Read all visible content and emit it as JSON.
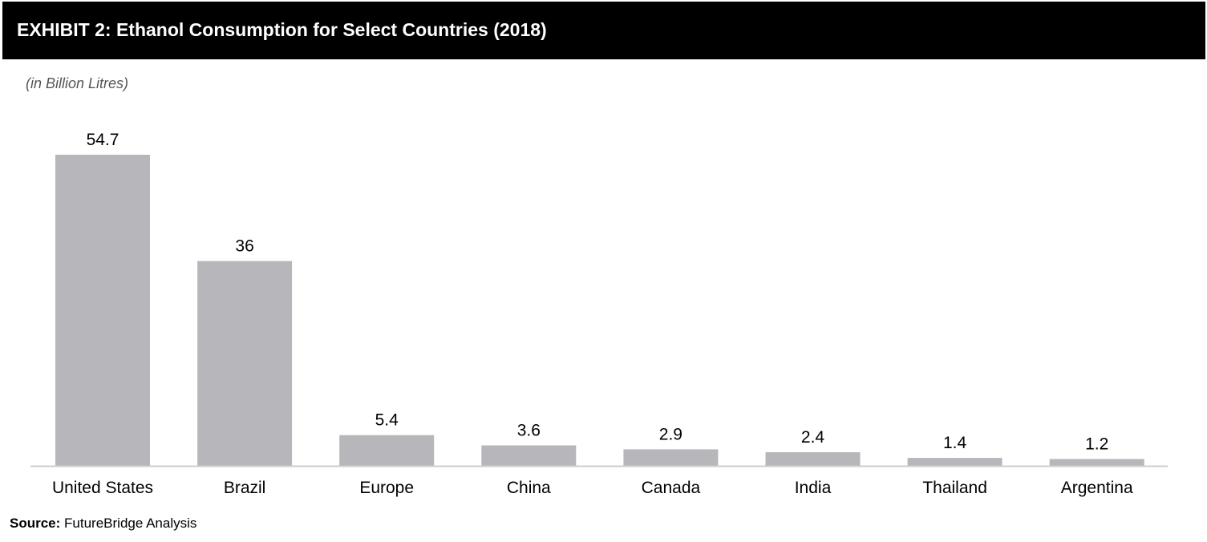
{
  "header": {
    "title": "EXHIBIT 2: Ethanol Consumption for Select Countries (2018)"
  },
  "units_note": "(in Billion Litres)",
  "source": {
    "label": "Source:",
    "text": "FutureBridge Analysis"
  },
  "colors": {
    "header_bg": "#000000",
    "header_text": "#ffffff",
    "bar": "#b7b6bb",
    "axis": "#cccccc"
  },
  "chart_data": {
    "type": "bar",
    "title": "",
    "xlabel": "",
    "ylabel": "",
    "categories": [
      "United States",
      "Brazil",
      "Europe",
      "China",
      "Canada",
      "India",
      "Thailand",
      "Argentina"
    ],
    "values": [
      54.7,
      36,
      5.4,
      3.6,
      2.9,
      2.4,
      1.4,
      1.2
    ],
    "value_labels": [
      "54.7",
      "36",
      "5.4",
      "3.6",
      "2.9",
      "2.4",
      "1.4",
      "1.2"
    ],
    "ylim": [
      0,
      54.7
    ],
    "grid": false,
    "legend": "none"
  }
}
